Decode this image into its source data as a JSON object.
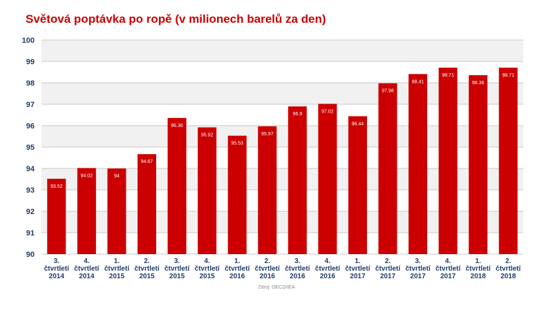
{
  "title": "Světová poptávka po ropě (v milionech barelů za den)",
  "source": "Zdroj: OECD/IEA",
  "colors": {
    "bar": "#cc0000",
    "title": "#cc0000",
    "tick_label": "#1f3a6b",
    "grid": "#c8c8c8",
    "plot_bg_band": "#f1f1f1"
  },
  "chart_data": {
    "type": "bar",
    "title": "Světová poptávka po ropě (v milionech barelů za den)",
    "xlabel": "",
    "ylabel": "",
    "ylim": [
      90,
      100
    ],
    "yticks": [
      90,
      91,
      92,
      93,
      94,
      95,
      96,
      97,
      98,
      99,
      100
    ],
    "grid": true,
    "legend": "none",
    "categories": [
      [
        "3.",
        "čtvrtletí",
        "2014"
      ],
      [
        "4.",
        "čtvrtletí",
        "2014"
      ],
      [
        "1.",
        "čtvrtletí",
        "2015"
      ],
      [
        "2.",
        "čtvrtletí",
        "2015"
      ],
      [
        "3.",
        "čtvrtletí",
        "2015"
      ],
      [
        "4.",
        "čtvrtletí",
        "2015"
      ],
      [
        "1.",
        "čtvrtletí",
        "2016"
      ],
      [
        "2.",
        "čtvrtletí",
        "2016"
      ],
      [
        "3.",
        "čtvrtletí",
        "2016"
      ],
      [
        "4.",
        "čtvrtletí",
        "2016"
      ],
      [
        "1.",
        "čtvrtletí",
        "2017"
      ],
      [
        "2.",
        "čtvrtletí",
        "2017"
      ],
      [
        "3.",
        "čtvrtletí",
        "2017"
      ],
      [
        "4.",
        "čtvrtletí",
        "2017"
      ],
      [
        "1.",
        "čtvrtletí",
        "2018"
      ],
      [
        "2.",
        "čtvrtletí",
        "2018"
      ]
    ],
    "values": [
      93.52,
      94.02,
      94,
      94.67,
      96.36,
      95.92,
      95.53,
      95.97,
      96.9,
      97.02,
      96.44,
      97.98,
      98.41,
      98.71,
      98.36,
      98.71
    ],
    "value_labels": [
      "93.52",
      "94.02",
      "94",
      "94.67",
      "96.36",
      "95.92",
      "95.53",
      "95.97",
      "96.9",
      "97.02",
      "96.44",
      "97.98",
      "98.41",
      "98.71",
      "98.36",
      "98.71"
    ]
  }
}
